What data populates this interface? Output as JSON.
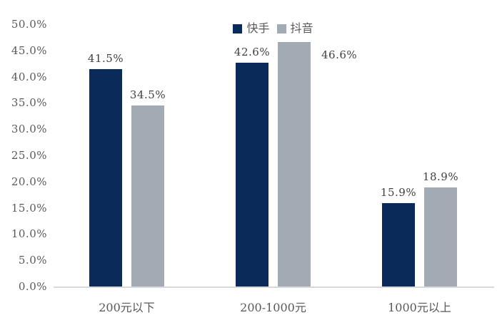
{
  "chart_data": {
    "type": "bar",
    "title": "",
    "xlabel": "",
    "ylabel": "",
    "categories": [
      "200元以下",
      "200-1000元",
      "1000元以上"
    ],
    "series": [
      {
        "name": "快手",
        "color": "#0A2A5A",
        "values": [
          41.5,
          42.6,
          15.9
        ],
        "labels": [
          "41.5%",
          "42.6%",
          "15.9%"
        ],
        "label_positions": [
          "above",
          "above",
          "above"
        ]
      },
      {
        "name": "抖音",
        "color": "#A2ABB4",
        "values": [
          34.5,
          46.6,
          18.9
        ],
        "labels": [
          "34.5%",
          "46.6%",
          "18.9%"
        ],
        "label_positions": [
          "above",
          "right",
          "above"
        ]
      }
    ],
    "ylim": [
      0,
      50
    ],
    "y_ticks": [
      "0.0%",
      "5.0%",
      "10.0%",
      "15.0%",
      "20.0%",
      "25.0%",
      "30.0%",
      "35.0%",
      "40.0%",
      "45.0%",
      "50.0%"
    ],
    "grid": false,
    "legend_position": "top-center",
    "axis_line_color": "#D9D9D9",
    "tick_label_color": "#595959",
    "data_label_color": "#404040",
    "background_color": "#FFFFFF"
  }
}
